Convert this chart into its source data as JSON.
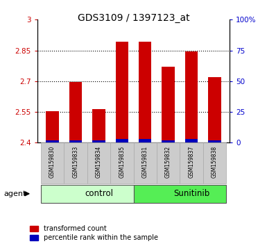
{
  "title": "GDS3109 / 1397123_at",
  "samples": [
    "GSM159830",
    "GSM159833",
    "GSM159834",
    "GSM159835",
    "GSM159831",
    "GSM159832",
    "GSM159837",
    "GSM159838"
  ],
  "red_values": [
    2.554,
    2.697,
    2.565,
    2.893,
    2.891,
    2.772,
    2.845,
    2.72
  ],
  "blue_values": [
    2,
    2,
    2,
    3,
    3,
    2,
    3,
    2
  ],
  "groups": [
    {
      "label": "control",
      "start": 0,
      "end": 4,
      "color": "#ccffcc"
    },
    {
      "label": "Sunitinib",
      "start": 4,
      "end": 8,
      "color": "#55ee55"
    }
  ],
  "ylim_left": [
    2.4,
    3.0
  ],
  "ylim_right": [
    0,
    100
  ],
  "yticks_left": [
    2.4,
    2.55,
    2.7,
    2.85,
    3.0
  ],
  "yticks_right": [
    0,
    25,
    50,
    75,
    100
  ],
  "ytick_labels_left": [
    "2.4",
    "2.55",
    "2.7",
    "2.85",
    "3"
  ],
  "ytick_labels_right": [
    "0",
    "25",
    "50",
    "75",
    "100%"
  ],
  "left_tick_color": "#cc0000",
  "right_tick_color": "#0000cc",
  "bar_color_red": "#cc0000",
  "bar_color_blue": "#0000bb",
  "agent_label": "agent",
  "legend_red": "transformed count",
  "legend_blue": "percentile rank within the sample",
  "bar_width": 0.55,
  "figsize": [
    3.85,
    3.54
  ],
  "dpi": 100
}
